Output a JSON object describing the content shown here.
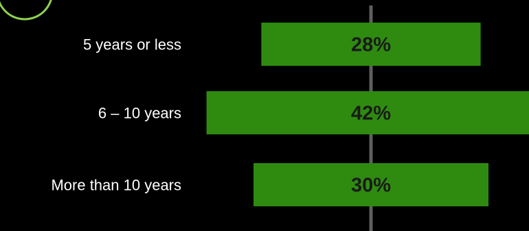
{
  "chart_data": {
    "type": "bar",
    "orientation": "horizontal",
    "categories": [
      "5 years or less",
      "6 – 10 years",
      "More than 10 years"
    ],
    "values": [
      28,
      42,
      30
    ],
    "value_labels": [
      "28%",
      "42%",
      "30%"
    ],
    "unit": "%",
    "centered_bars": true,
    "title": "",
    "xlabel": "",
    "ylabel": "",
    "grid": false,
    "legend": "none"
  },
  "colors": {
    "background": "#000000",
    "bar": "#2e8b10",
    "center_line": "#5f5f5f",
    "category_text": "#ffffff",
    "value_text": "#1a1a1a",
    "badge_outline": "#8fd14f"
  },
  "icons": {
    "corner_badge": "circle-badge-icon"
  }
}
